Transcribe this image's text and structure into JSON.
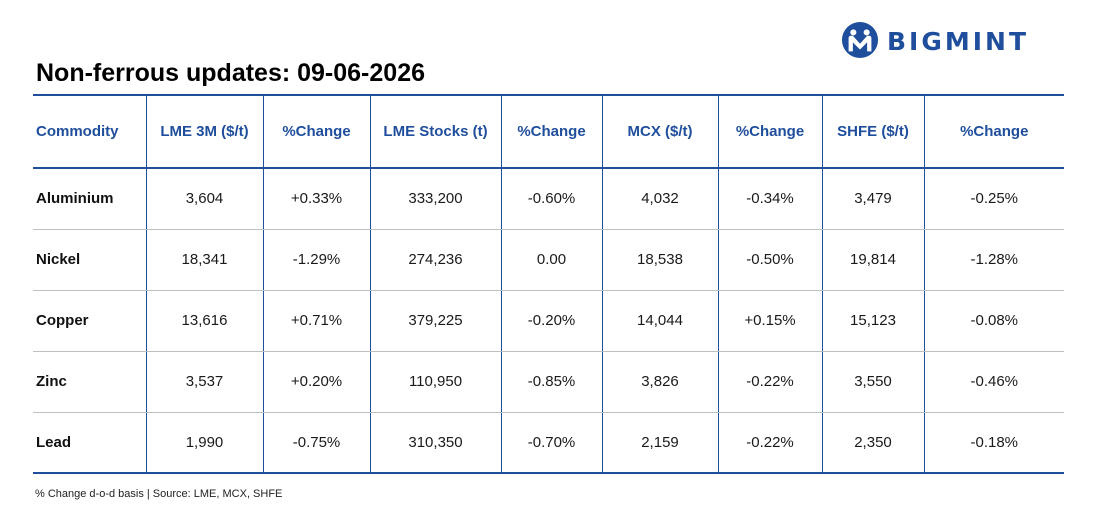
{
  "brand": {
    "name": "BIGMINT",
    "logo_icon": "bigmint-logo-icon",
    "color": "#1f4e9c"
  },
  "title": "Non-ferrous updates: 09-06-2026",
  "table": {
    "headers": [
      "Commodity",
      "LME 3M ($/t)",
      "%Change",
      "LME Stocks (t)",
      "%Change",
      "MCX ($/t)",
      "%Change",
      "SHFE ($/t)",
      "%Change"
    ],
    "rows": [
      [
        "Aluminium",
        "3,604",
        "+0.33%",
        "333,200",
        "-0.60%",
        "4,032",
        "-0.34%",
        "3,479",
        "-0.25%"
      ],
      [
        "Nickel",
        "18,341",
        "-1.29%",
        "274,236",
        "0.00",
        "18,538",
        "-0.50%",
        "19,814",
        "-1.28%"
      ],
      [
        "Copper",
        "13,616",
        "+0.71%",
        "379,225",
        "-0.20%",
        "14,044",
        "+0.15%",
        "15,123",
        "-0.08%"
      ],
      [
        "Zinc",
        "3,537",
        "+0.20%",
        "110,950",
        "-0.85%",
        "3,826",
        "-0.22%",
        "3,550",
        "-0.46%"
      ],
      [
        "Lead",
        "1,990",
        "-0.75%",
        "310,350",
        "-0.70%",
        "2,159",
        "-0.22%",
        "2,350",
        "-0.18%"
      ]
    ]
  },
  "colors": {
    "positive": "#1e9e4a",
    "negative": "#d7262b",
    "header": "#1f4e9c"
  },
  "footnote": "% Change d-o-d basis | Source: LME, MCX, SHFE"
}
